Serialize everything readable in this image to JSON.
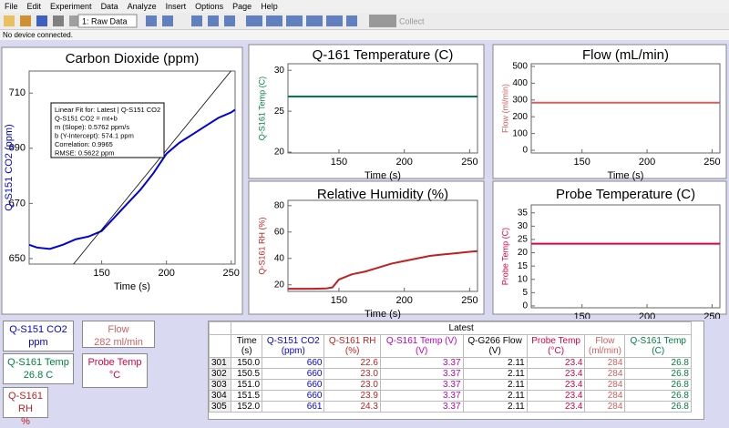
{
  "menu": [
    "File",
    "Edit",
    "Experiment",
    "Data",
    "Analyze",
    "Insert",
    "Options",
    "Page",
    "Help"
  ],
  "toolbar": {
    "page_select": "1: Raw Data",
    "collect": "Collect"
  },
  "status": "No device connected.",
  "charts": [
    {
      "type": "line",
      "title": "Carbon Dioxide (ppm)",
      "x_label": "Time (s)",
      "y_label": "Q-S151 CO2 (ppm)",
      "color": "#0000e0",
      "xlim": [
        94,
        253
      ],
      "xticks": [
        150,
        200,
        250
      ],
      "ylim": [
        648,
        718
      ],
      "yticks": [
        650,
        670,
        690,
        710
      ],
      "x": [
        94,
        100,
        110,
        120,
        130,
        140,
        150,
        160,
        170,
        180,
        190,
        200,
        210,
        220,
        230,
        240,
        250,
        253
      ],
      "values": [
        655,
        654,
        653.5,
        655,
        657,
        658,
        660,
        665,
        670,
        675,
        681,
        688,
        692,
        695,
        698,
        701,
        703,
        704
      ],
      "fit": {
        "slope": 0.5762,
        "intercept": 574.1,
        "lines": [
          "Linear Fit for: Latest | Q-S151 CO2",
          "Q-S151 CO2 = mt+b",
          "m (Slope): 0.5762 ppm/s",
          "b (Y-Intercept): 574.1 ppm",
          "Correlation: 0.9965",
          "RMSE: 0.5622 ppm"
        ]
      }
    },
    {
      "type": "line",
      "title": "Q-161 Temperature (C)",
      "x_label": "Time (s)",
      "y_label": "Q-S161 Temp (C)",
      "color": "#008040",
      "xlim": [
        111,
        256
      ],
      "xticks": [
        150,
        200,
        250
      ],
      "ylim": [
        19.9,
        30.8
      ],
      "yticks": [
        20,
        25,
        30
      ],
      "x": [
        111,
        256
      ],
      "values": [
        26.8,
        26.8
      ]
    },
    {
      "type": "line",
      "title": "Flow (mL/min)",
      "x_label": "Time (s)",
      "y_label": "Flow (ml/min)",
      "color": "#d06060",
      "xlim": [
        111,
        256
      ],
      "xticks": [
        150,
        200,
        250
      ],
      "ylim": [
        -16,
        516
      ],
      "yticks": [
        0,
        100,
        200,
        300,
        400,
        500
      ],
      "x": [
        111,
        256
      ],
      "values": [
        284,
        284
      ]
    },
    {
      "type": "line",
      "title": "Relative Humidity (%)",
      "x_label": "Time (s)",
      "y_label": "Q-S161 RH (%)",
      "color": "#c02020",
      "xlim": [
        111,
        256
      ],
      "xticks": [
        150,
        200,
        250
      ],
      "ylim": [
        15,
        84
      ],
      "yticks": [
        20,
        40,
        60,
        80
      ],
      "x": [
        111,
        120,
        130,
        140,
        145,
        150,
        155,
        160,
        170,
        180,
        190,
        200,
        210,
        220,
        230,
        240,
        250,
        256
      ],
      "values": [
        17,
        17,
        17,
        17.2,
        18,
        24,
        26,
        28,
        30,
        33,
        36,
        38,
        40,
        42,
        43,
        44,
        45,
        45.5
      ]
    },
    {
      "type": "line",
      "title": "Probe Temperature (C)",
      "x_label": "Time (s)",
      "y_label": "Probe Temp (C)",
      "color": "#e00040",
      "xlim": [
        111,
        256
      ],
      "xticks": [
        150,
        200,
        250
      ],
      "ylim": [
        -0.7,
        38
      ],
      "yticks": [
        0,
        5,
        10,
        15,
        20,
        25,
        30,
        35
      ],
      "x": [
        111,
        256
      ],
      "values": [
        23.4,
        23.4
      ]
    }
  ],
  "meters": [
    {
      "name": "Q-S151 CO2",
      "reading": "ppm"
    },
    {
      "name": "Q-S161 Temp",
      "reading": "26.8 C"
    },
    {
      "name": "Q-S161 RH",
      "reading": "%"
    },
    {
      "name": "Flow",
      "reading": "282 ml/min"
    },
    {
      "name": "Probe Temp",
      "reading": "°C"
    }
  ],
  "table": {
    "title": "Latest",
    "columns": [
      [
        "Time",
        "(s)"
      ],
      [
        "Q-S151 CO2",
        "(ppm)"
      ],
      [
        "Q-S161 RH",
        "(%)"
      ],
      [
        "Q-S161 Temp (V)",
        "(V)"
      ],
      [
        "Q-G266 Flow",
        "(V)"
      ],
      [
        "Probe Temp",
        "(°C)"
      ],
      [
        "Flow",
        "(ml/min)"
      ],
      [
        "Q-S161 Temp",
        "(C)"
      ]
    ],
    "rows": [
      [
        "301",
        "150.0",
        "660",
        "22.6",
        "3.37",
        "2.11",
        "23.4",
        "284",
        "26.8"
      ],
      [
        "302",
        "150.5",
        "660",
        "23.0",
        "3.37",
        "2.11",
        "23.4",
        "284",
        "26.8"
      ],
      [
        "303",
        "151.0",
        "660",
        "23.0",
        "3.37",
        "2.11",
        "23.4",
        "284",
        "26.8"
      ],
      [
        "304",
        "151.5",
        "660",
        "23.9",
        "3.37",
        "2.11",
        "23.4",
        "284",
        "26.8"
      ],
      [
        "305",
        "152.0",
        "661",
        "24.3",
        "3.37",
        "2.11",
        "23.4",
        "284",
        "26.8"
      ]
    ]
  }
}
